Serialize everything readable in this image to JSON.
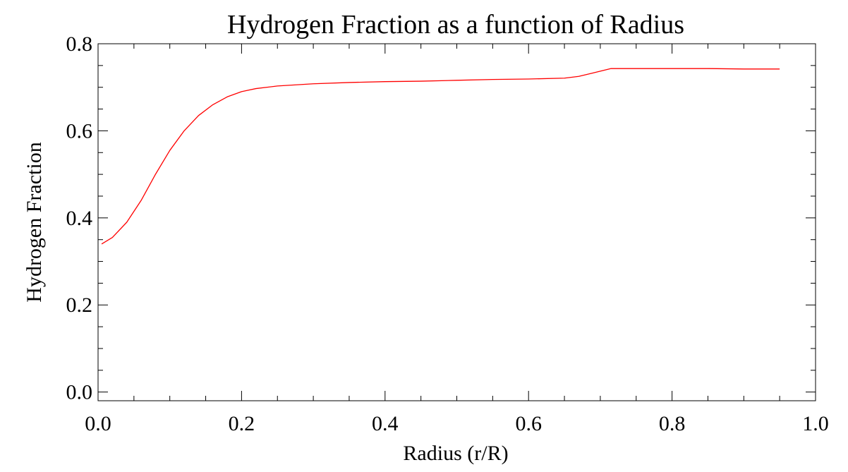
{
  "chart_data": {
    "type": "line",
    "title": "Hydrogen Fraction as a function of Radius",
    "xlabel": "Radius (r/R)",
    "ylabel": "Hydrogen Fraction",
    "xlim": [
      0.0,
      1.0
    ],
    "ylim": [
      -0.02,
      0.8
    ],
    "x_ticks": [
      0.0,
      0.2,
      0.4,
      0.6,
      0.8,
      1.0
    ],
    "x_tick_labels": [
      "0.0",
      "0.2",
      "0.4",
      "0.6",
      "0.8",
      "1.0"
    ],
    "y_ticks": [
      0.0,
      0.2,
      0.4,
      0.6,
      0.8
    ],
    "y_tick_labels": [
      "0.0",
      "0.2",
      "0.4",
      "0.6",
      "0.8"
    ],
    "grid": false,
    "series": [
      {
        "color": "#ff0000",
        "x": [
          0.005,
          0.02,
          0.04,
          0.06,
          0.08,
          0.1,
          0.12,
          0.14,
          0.16,
          0.18,
          0.2,
          0.22,
          0.25,
          0.3,
          0.35,
          0.4,
          0.45,
          0.5,
          0.55,
          0.6,
          0.65,
          0.67,
          0.69,
          0.715,
          0.75,
          0.8,
          0.85,
          0.9,
          0.95
        ],
        "y": [
          0.34,
          0.355,
          0.39,
          0.44,
          0.5,
          0.555,
          0.6,
          0.635,
          0.66,
          0.678,
          0.69,
          0.697,
          0.703,
          0.708,
          0.711,
          0.713,
          0.714,
          0.716,
          0.718,
          0.719,
          0.721,
          0.725,
          0.733,
          0.743,
          0.743,
          0.743,
          0.743,
          0.742,
          0.742
        ]
      }
    ]
  }
}
